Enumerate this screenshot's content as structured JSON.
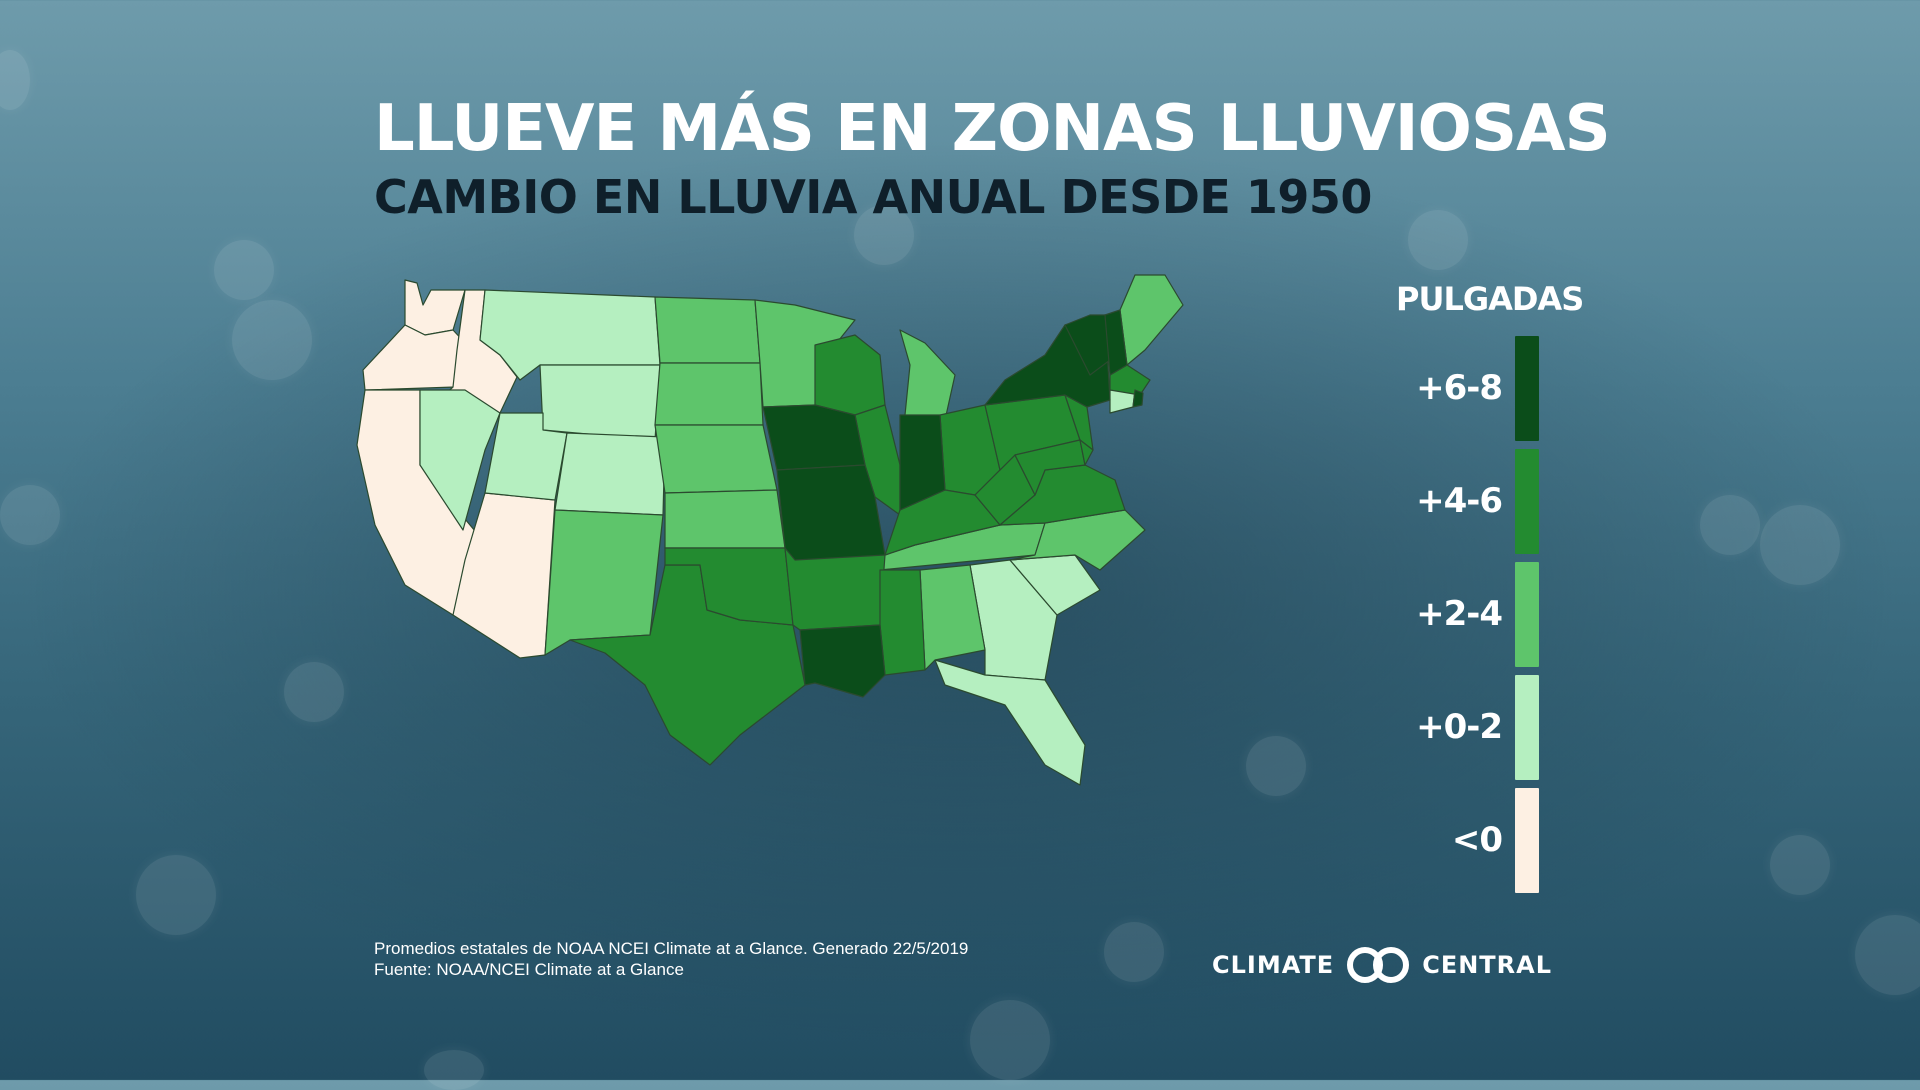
{
  "title": "LLUEVE MÁS EN ZONAS LLUVIOSAS",
  "subtitle": "CAMBIO EN LLUVIA ANUAL DESDE 1950",
  "legend": {
    "title": "PULGADAS",
    "items": [
      {
        "label": "+6-8",
        "color": "#0b4d1a"
      },
      {
        "label": "+4-6",
        "color": "#238b30"
      },
      {
        "label": "+2-4",
        "color": "#5ec56b"
      },
      {
        "label": "+0-2",
        "color": "#b5efc0"
      },
      {
        "label": "<0",
        "color": "#fdf0e3"
      }
    ]
  },
  "regions": [
    {
      "state": "WA",
      "bin": "<0"
    },
    {
      "state": "OR",
      "bin": "<0"
    },
    {
      "state": "CA",
      "bin": "<0"
    },
    {
      "state": "ID",
      "bin": "<0"
    },
    {
      "state": "AZ",
      "bin": "<0"
    },
    {
      "state": "NV",
      "bin": "+0-2"
    },
    {
      "state": "MT",
      "bin": "+0-2"
    },
    {
      "state": "WY",
      "bin": "+0-2"
    },
    {
      "state": "UT",
      "bin": "+0-2"
    },
    {
      "state": "CO",
      "bin": "+0-2"
    },
    {
      "state": "GA",
      "bin": "+0-2"
    },
    {
      "state": "FL",
      "bin": "+0-2"
    },
    {
      "state": "SC",
      "bin": "+0-2"
    },
    {
      "state": "CT",
      "bin": "+0-2"
    },
    {
      "state": "NM",
      "bin": "+2-4"
    },
    {
      "state": "ND",
      "bin": "+2-4"
    },
    {
      "state": "SD",
      "bin": "+2-4"
    },
    {
      "state": "NE",
      "bin": "+2-4"
    },
    {
      "state": "KS",
      "bin": "+2-4"
    },
    {
      "state": "MN",
      "bin": "+2-4"
    },
    {
      "state": "MI",
      "bin": "+2-4"
    },
    {
      "state": "TN",
      "bin": "+2-4"
    },
    {
      "state": "NC",
      "bin": "+2-4"
    },
    {
      "state": "AL",
      "bin": "+2-4"
    },
    {
      "state": "ME",
      "bin": "+2-4"
    },
    {
      "state": "TX",
      "bin": "+4-6"
    },
    {
      "state": "OK",
      "bin": "+4-6"
    },
    {
      "state": "AR",
      "bin": "+4-6"
    },
    {
      "state": "MS",
      "bin": "+4-6"
    },
    {
      "state": "WI",
      "bin": "+4-6"
    },
    {
      "state": "IL",
      "bin": "+4-6"
    },
    {
      "state": "OH",
      "bin": "+4-6"
    },
    {
      "state": "KY",
      "bin": "+4-6"
    },
    {
      "state": "WV",
      "bin": "+4-6"
    },
    {
      "state": "VA",
      "bin": "+4-6"
    },
    {
      "state": "PA",
      "bin": "+4-6"
    },
    {
      "state": "NJ",
      "bin": "+4-6"
    },
    {
      "state": "MD",
      "bin": "+4-6"
    },
    {
      "state": "DE",
      "bin": "+4-6"
    },
    {
      "state": "MA",
      "bin": "+4-6"
    },
    {
      "state": "NY",
      "bin": "+6-8"
    },
    {
      "state": "VT",
      "bin": "+6-8"
    },
    {
      "state": "NH",
      "bin": "+6-8"
    },
    {
      "state": "IA",
      "bin": "+6-8"
    },
    {
      "state": "MO",
      "bin": "+6-8"
    },
    {
      "state": "IN",
      "bin": "+6-8"
    },
    {
      "state": "LA",
      "bin": "+6-8"
    },
    {
      "state": "RI",
      "bin": "+6-8"
    }
  ],
  "footnote": {
    "line1": "Promedios estatales de NOAA NCEI Climate at a Glance. Generado 22/5/2019",
    "line2": "Fuente: NOAA/NCEI Climate at a Glance"
  },
  "logo": {
    "left_word": "CLIMATE",
    "right_word": "CENTRAL"
  }
}
